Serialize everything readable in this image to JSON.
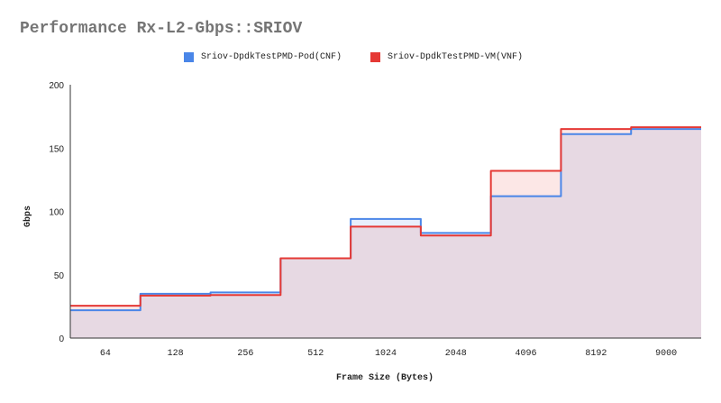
{
  "chart_data": {
    "type": "area",
    "subtype": "stepped",
    "title": "Performance Rx-L2-Gbps::SRIOV",
    "xlabel": "Frame Size (Bytes)",
    "ylabel": "Gbps",
    "ylim": [
      0,
      200
    ],
    "yticks": [
      0,
      50,
      100,
      150,
      200
    ],
    "grid": false,
    "legend_position": "top",
    "categories": [
      "64",
      "128",
      "256",
      "512",
      "1024",
      "2048",
      "4096",
      "8192",
      "9000"
    ],
    "series": [
      {
        "name": "Sriov-DpdkTestPMD-Pod(CNF)",
        "color": "#4a86e8",
        "values": [
          22,
          35,
          36,
          63,
          94,
          83,
          112,
          161,
          165
        ]
      },
      {
        "name": "Sriov-DpdkTestPMD-VM(VNF)",
        "color": "#e53935",
        "values": [
          25.5,
          33.5,
          34,
          63,
          88,
          81,
          132,
          165,
          166.5
        ]
      }
    ]
  },
  "legend": {
    "items": [
      {
        "label": "Sriov-DpdkTestPMD-Pod(CNF)",
        "color": "#4a86e8"
      },
      {
        "label": "Sriov-DpdkTestPMD-VM(VNF)",
        "color": "#e53935"
      }
    ]
  }
}
